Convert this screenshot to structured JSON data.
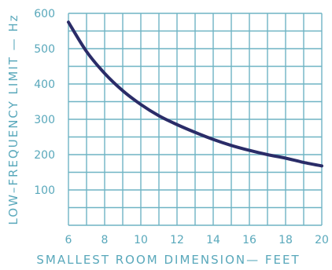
{
  "chart_data": {
    "type": "line",
    "title": "",
    "xlabel": "SMALLEST ROOM DIMENSION— FEET",
    "ylabel": "LOW–FREQUENCY LIMIT — Hz",
    "xlim": [
      6,
      20
    ],
    "ylim": [
      0,
      600
    ],
    "x_ticks": [
      "6",
      "8",
      "10",
      "12",
      "14",
      "16",
      "18",
      "20"
    ],
    "y_ticks": [
      "100",
      "200",
      "300",
      "400",
      "500",
      "600"
    ],
    "grid": true,
    "x": [
      6,
      7,
      8,
      9,
      10,
      11,
      12,
      13,
      14,
      15,
      16,
      17,
      18,
      19,
      20
    ],
    "series": [
      {
        "values": [
          575,
          492,
          430,
          381,
          342,
          310,
          285,
          263,
          243,
          226,
          212,
          200,
          190,
          178,
          168
        ]
      }
    ],
    "colors": {
      "grid": "#6fb4c4",
      "text": "#59a8bb",
      "line": "#2a2c68"
    }
  }
}
